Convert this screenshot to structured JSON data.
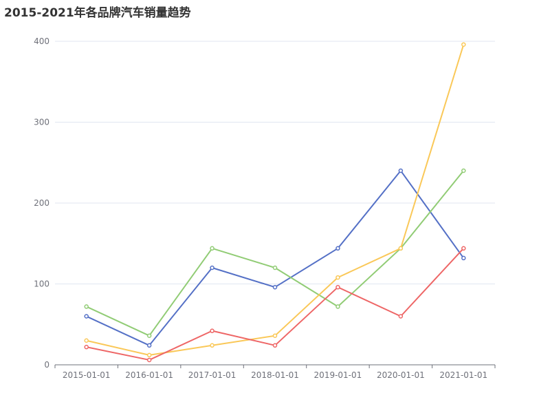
{
  "chart_data": {
    "type": "line",
    "title": "2015-2021年各品牌汽车销量趋势",
    "categories": [
      "2015-01-01",
      "2016-01-01",
      "2017-01-01",
      "2018-01-01",
      "2019-01-01",
      "2020-01-01",
      "2021-01-01"
    ],
    "series": [
      {
        "values": [
          60,
          24,
          120,
          96,
          144,
          240,
          132
        ],
        "color": "#5470c6"
      },
      {
        "values": [
          72,
          36,
          144,
          120,
          72,
          144,
          240
        ],
        "color": "#91cc75"
      },
      {
        "values": [
          30,
          12,
          24,
          36,
          108,
          144,
          396
        ],
        "color": "#fac858"
      },
      {
        "values": [
          22,
          6,
          42,
          24,
          96,
          60,
          144
        ],
        "color": "#ee6666"
      }
    ],
    "ylim": [
      0,
      400
    ],
    "yticks": [
      0,
      100,
      200,
      300,
      400
    ],
    "grid": true,
    "legend": "none"
  }
}
